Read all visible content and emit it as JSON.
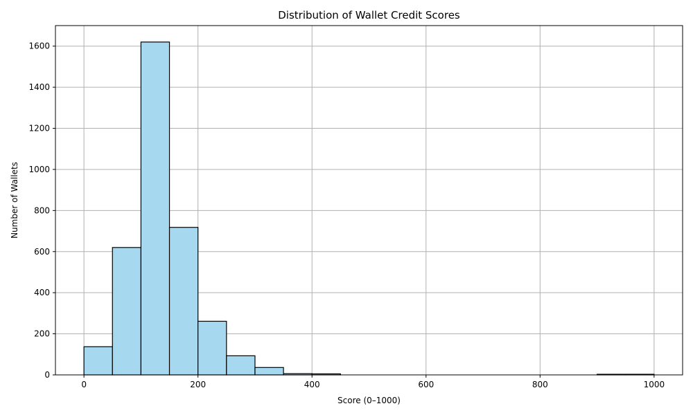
{
  "chart_data": {
    "type": "bar",
    "title": "Distribution of Wallet Credit Scores",
    "xlabel": "Score (0–1000)",
    "ylabel": "Number of Wallets",
    "xlim": [
      -50,
      1050
    ],
    "ylim": [
      0,
      1700
    ],
    "xticks": [
      0,
      200,
      400,
      600,
      800,
      1000
    ],
    "yticks": [
      0,
      200,
      400,
      600,
      800,
      1000,
      1200,
      1400,
      1600
    ],
    "grid": true,
    "bar_color": "#a6d9ef",
    "edge_color": "#000000",
    "bins": [
      {
        "start": 0,
        "end": 50,
        "count": 137
      },
      {
        "start": 50,
        "end": 100,
        "count": 620
      },
      {
        "start": 100,
        "end": 150,
        "count": 1620
      },
      {
        "start": 150,
        "end": 200,
        "count": 718
      },
      {
        "start": 200,
        "end": 250,
        "count": 261
      },
      {
        "start": 250,
        "end": 300,
        "count": 93
      },
      {
        "start": 300,
        "end": 350,
        "count": 36
      },
      {
        "start": 350,
        "end": 400,
        "count": 6
      },
      {
        "start": 400,
        "end": 450,
        "count": 5
      },
      {
        "start": 450,
        "end": 500,
        "count": 0
      },
      {
        "start": 500,
        "end": 550,
        "count": 0
      },
      {
        "start": 550,
        "end": 600,
        "count": 0
      },
      {
        "start": 600,
        "end": 650,
        "count": 0
      },
      {
        "start": 650,
        "end": 700,
        "count": 0
      },
      {
        "start": 700,
        "end": 750,
        "count": 0
      },
      {
        "start": 750,
        "end": 800,
        "count": 0
      },
      {
        "start": 800,
        "end": 850,
        "count": 0
      },
      {
        "start": 850,
        "end": 900,
        "count": 0
      },
      {
        "start": 900,
        "end": 950,
        "count": 3
      },
      {
        "start": 950,
        "end": 1000,
        "count": 3
      }
    ]
  }
}
